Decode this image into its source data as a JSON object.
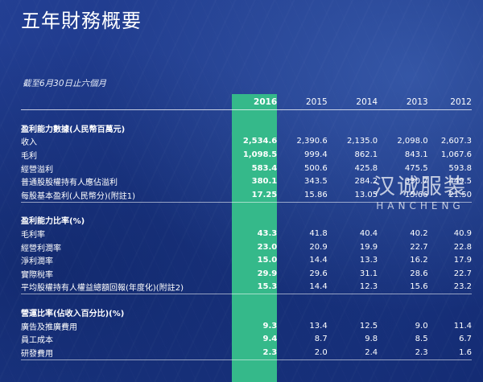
{
  "page": {
    "title": "五年財務概要",
    "subtitle": "截至6月30日止六個月"
  },
  "table": {
    "years": [
      "2016",
      "2015",
      "2014",
      "2013",
      "2012"
    ],
    "sections": [
      {
        "title": "盈利能力數據(人民幣百萬元)",
        "rows": [
          {
            "label": "收入",
            "values": [
              "2,534.6",
              "2,390.6",
              "2,135.0",
              "2,098.0",
              "2,607.3"
            ]
          },
          {
            "label": "毛利",
            "values": [
              "1,098.5",
              "999.4",
              "862.1",
              "843.1",
              "1,067.6"
            ]
          },
          {
            "label": "經營溢利",
            "values": [
              "583.4",
              "500.6",
              "425.8",
              "475.5",
              "593.8"
            ]
          },
          {
            "label": "普通股股權持有人應佔溢利",
            "values": [
              "380.1",
              "343.5",
              "284.2",
              "330.7",
              "449.5"
            ]
          },
          {
            "label": "每股基本盈利(人民幣分)(附註1)",
            "values": [
              "17.25",
              "15.86",
              "13.05",
              "15.66",
              "21.50"
            ]
          }
        ]
      },
      {
        "title": "盈利能力比率(%)",
        "rows": [
          {
            "label": "毛利率",
            "values": [
              "43.3",
              "41.8",
              "40.4",
              "40.2",
              "40.9"
            ]
          },
          {
            "label": "經營利潤率",
            "values": [
              "23.0",
              "20.9",
              "19.9",
              "22.7",
              "22.8"
            ]
          },
          {
            "label": "淨利潤率",
            "values": [
              "15.0",
              "14.4",
              "13.3",
              "16.2",
              "17.9"
            ]
          },
          {
            "label": "實際稅率",
            "values": [
              "29.9",
              "29.6",
              "31.1",
              "28.6",
              "22.7"
            ]
          },
          {
            "label": "平均股權持有人權益總額回報(年度化)(附註2)",
            "values": [
              "15.3",
              "14.4",
              "12.3",
              "15.6",
              "23.2"
            ]
          }
        ]
      },
      {
        "title": "營運比率(佔收入百分比)(%)",
        "rows": [
          {
            "label": "廣告及推廣費用",
            "values": [
              "9.3",
              "13.4",
              "12.5",
              "9.0",
              "11.4"
            ]
          },
          {
            "label": "員工成本",
            "values": [
              "9.4",
              "8.7",
              "9.8",
              "8.5",
              "6.7"
            ]
          },
          {
            "label": "研發費用",
            "values": [
              "2.3",
              "2.0",
              "2.4",
              "2.3",
              "1.6"
            ]
          }
        ]
      }
    ]
  },
  "watermark": {
    "chinese": "汉诚服装",
    "english": "HANCHENG"
  },
  "colors": {
    "background": "#1f3a8c",
    "highlight_column": "#35b98a",
    "text": "#ffffff"
  }
}
